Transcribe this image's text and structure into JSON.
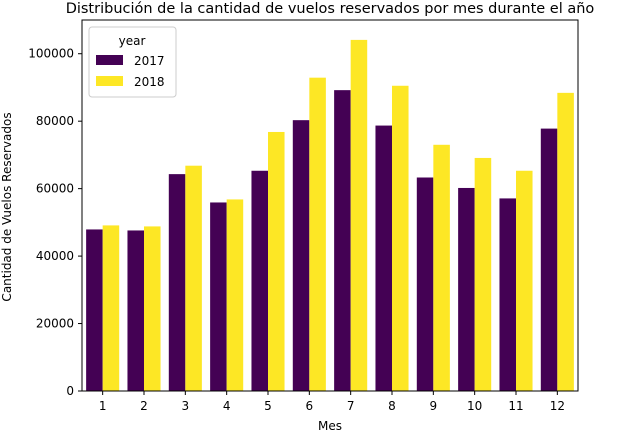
{
  "chart_data": {
    "type": "bar",
    "title": "Distribución de la cantidad de vuelos reservados por mes durante el año",
    "xlabel": "Mes",
    "ylabel": "Cantidad de Vuelos Reservados",
    "categories": [
      "1",
      "2",
      "3",
      "4",
      "5",
      "6",
      "7",
      "8",
      "9",
      "10",
      "11",
      "12"
    ],
    "ylim": [
      0,
      110000
    ],
    "yticks": [
      0,
      20000,
      40000,
      60000,
      80000,
      100000
    ],
    "ytick_labels": [
      "0",
      "20000",
      "40000",
      "60000",
      "80000",
      "100000"
    ],
    "legend": {
      "title": "year",
      "position": "top-left"
    },
    "grid": false,
    "series": [
      {
        "name": "2017",
        "color": "#440154",
        "values": [
          47900,
          47600,
          64300,
          55900,
          65300,
          80300,
          89200,
          78700,
          63300,
          60200,
          57100,
          77800
        ]
      },
      {
        "name": "2018",
        "color": "#FDE725",
        "values": [
          49100,
          48800,
          66800,
          56800,
          76800,
          92900,
          104100,
          90500,
          73000,
          69100,
          65300,
          88400
        ]
      }
    ]
  }
}
